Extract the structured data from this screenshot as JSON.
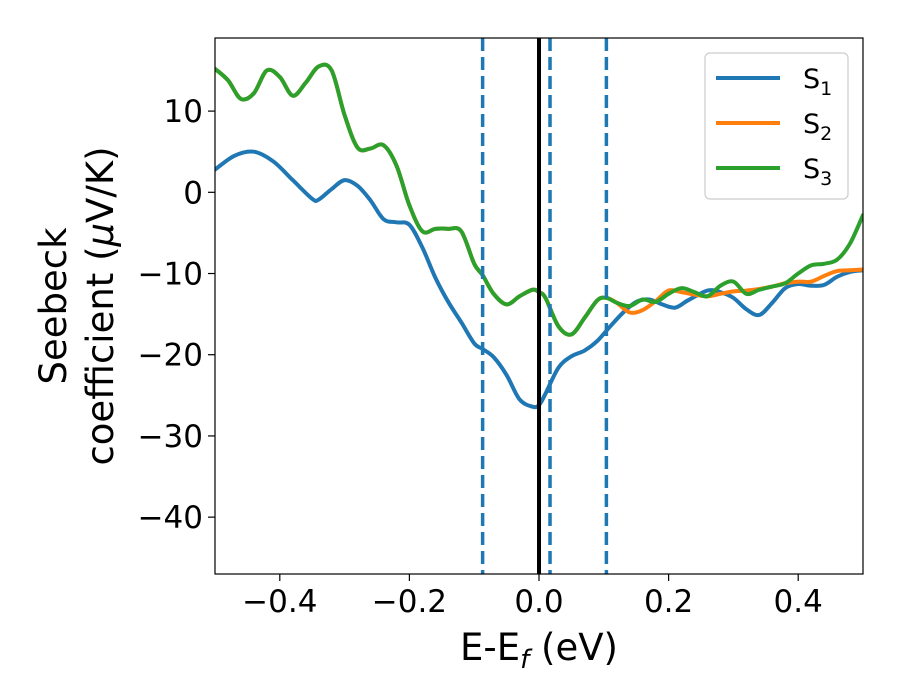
{
  "chart_data": {
    "type": "line",
    "title": "",
    "xlabel": "E-E",
    "xlabel_sub": "f",
    "xlabel_unit": " (eV)",
    "ylabel_line1": "Seebeck",
    "ylabel_line2_text": "coefficient  (",
    "ylabel_line2_mu": "μ",
    "ylabel_line2_unit": "V/K)",
    "xlim": [
      -0.5,
      0.5
    ],
    "ylim": [
      -47,
      19
    ],
    "x_ticks": [
      -0.4,
      -0.2,
      0.0,
      0.2,
      0.4
    ],
    "x_tick_labels": [
      "−0.4",
      "−0.2",
      "0.0",
      "0.2",
      "0.4"
    ],
    "y_ticks": [
      10,
      0,
      -10,
      -20,
      -30,
      -40
    ],
    "y_tick_labels": [
      "10",
      "0",
      "−10",
      "−20",
      "−30",
      "−40"
    ],
    "grid": false,
    "legend_position": "top-right",
    "vertical_lines": [
      {
        "x": 0.0,
        "style": "solid",
        "color": "#000000"
      },
      {
        "x": -0.087,
        "style": "dashed",
        "color": "#1f77b4"
      },
      {
        "x": 0.017,
        "style": "dashed",
        "color": "#1f77b4"
      },
      {
        "x": 0.104,
        "style": "dashed",
        "color": "#1f77b4"
      }
    ],
    "series": [
      {
        "name": "S",
        "sub": "1",
        "color": "#1f77b4",
        "x": [
          -0.5,
          -0.47,
          -0.44,
          -0.41,
          -0.38,
          -0.35,
          -0.34,
          -0.32,
          -0.3,
          -0.28,
          -0.26,
          -0.24,
          -0.22,
          -0.2,
          -0.18,
          -0.16,
          -0.14,
          -0.12,
          -0.1,
          -0.087,
          -0.07,
          -0.05,
          -0.03,
          -0.01,
          0.0,
          0.01,
          0.03,
          0.05,
          0.07,
          0.09,
          0.11,
          0.13,
          0.15,
          0.17,
          0.19,
          0.21,
          0.23,
          0.26,
          0.28,
          0.3,
          0.32,
          0.34,
          0.36,
          0.38,
          0.4,
          0.42,
          0.44,
          0.46,
          0.48,
          0.5
        ],
        "y": [
          2.8,
          4.5,
          5.0,
          3.8,
          1.5,
          -0.8,
          -0.9,
          0.4,
          1.5,
          0.8,
          -1.0,
          -3.3,
          -3.7,
          -4.0,
          -6.8,
          -10.5,
          -13.5,
          -16.0,
          -18.6,
          -19.3,
          -20.3,
          -22.5,
          -25.5,
          -26.4,
          -26.2,
          -24.8,
          -21.6,
          -20.2,
          -19.5,
          -18.3,
          -16.5,
          -14.8,
          -13.5,
          -13.2,
          -13.8,
          -14.2,
          -13.3,
          -12.1,
          -12.3,
          -13.0,
          -14.4,
          -15.1,
          -13.6,
          -11.8,
          -11.3,
          -11.5,
          -11.4,
          -10.4,
          -9.8,
          -9.6
        ]
      },
      {
        "name": "S",
        "sub": "2",
        "color": "#ff7f0e",
        "x": [
          -0.5,
          -0.48,
          -0.46,
          -0.44,
          -0.42,
          -0.4,
          -0.38,
          -0.36,
          -0.34,
          -0.32,
          -0.3,
          -0.28,
          -0.26,
          -0.24,
          -0.22,
          -0.2,
          -0.18,
          -0.16,
          -0.14,
          -0.12,
          -0.1,
          -0.087,
          -0.07,
          -0.05,
          -0.03,
          -0.01,
          0.0,
          0.01,
          0.03,
          0.05,
          0.07,
          0.09,
          0.104,
          0.12,
          0.14,
          0.16,
          0.18,
          0.2,
          0.22,
          0.24,
          0.26,
          0.28,
          0.3,
          0.32,
          0.34,
          0.36,
          0.38,
          0.4,
          0.42,
          0.44,
          0.46,
          0.48,
          0.5
        ],
        "y": [
          15.2,
          13.8,
          11.5,
          12.2,
          15.0,
          14.2,
          11.9,
          13.5,
          15.5,
          15.0,
          9.5,
          5.5,
          5.4,
          5.8,
          3.3,
          -1.6,
          -4.8,
          -4.5,
          -4.5,
          -4.8,
          -8.8,
          -10.2,
          -12.5,
          -13.8,
          -12.8,
          -12.0,
          -12.3,
          -13.0,
          -16.5,
          -17.5,
          -15.5,
          -13.3,
          -13.0,
          -13.6,
          -14.8,
          -14.5,
          -13.4,
          -12.1,
          -12.3,
          -12.6,
          -12.8,
          -12.5,
          -12.2,
          -12.1,
          -11.9,
          -11.6,
          -11.2,
          -11.0,
          -11.0,
          -10.3,
          -9.7,
          -9.6,
          -9.5
        ]
      },
      {
        "name": "S",
        "sub": "3",
        "color": "#2ca02c",
        "x": [
          -0.5,
          -0.48,
          -0.46,
          -0.44,
          -0.42,
          -0.4,
          -0.38,
          -0.36,
          -0.34,
          -0.32,
          -0.3,
          -0.28,
          -0.26,
          -0.24,
          -0.22,
          -0.2,
          -0.18,
          -0.16,
          -0.14,
          -0.12,
          -0.1,
          -0.087,
          -0.07,
          -0.05,
          -0.03,
          -0.01,
          0.0,
          0.01,
          0.03,
          0.05,
          0.07,
          0.09,
          0.104,
          0.12,
          0.14,
          0.16,
          0.18,
          0.2,
          0.22,
          0.24,
          0.26,
          0.28,
          0.3,
          0.32,
          0.34,
          0.36,
          0.38,
          0.4,
          0.42,
          0.44,
          0.46,
          0.48,
          0.5
        ],
        "y": [
          15.2,
          13.8,
          11.5,
          12.2,
          15.0,
          14.2,
          11.9,
          13.5,
          15.5,
          15.0,
          9.5,
          5.5,
          5.4,
          5.8,
          3.3,
          -1.6,
          -4.8,
          -4.5,
          -4.5,
          -4.8,
          -8.8,
          -10.2,
          -12.5,
          -13.8,
          -12.8,
          -12.0,
          -12.3,
          -13.0,
          -16.5,
          -17.5,
          -15.5,
          -13.3,
          -13.0,
          -13.6,
          -14.0,
          -13.2,
          -13.5,
          -12.5,
          -11.8,
          -12.3,
          -12.8,
          -11.5,
          -11.0,
          -12.5,
          -12.0,
          -11.6,
          -11.2,
          -10.0,
          -9.0,
          -8.8,
          -8.3,
          -6.3,
          -2.8
        ]
      }
    ]
  }
}
